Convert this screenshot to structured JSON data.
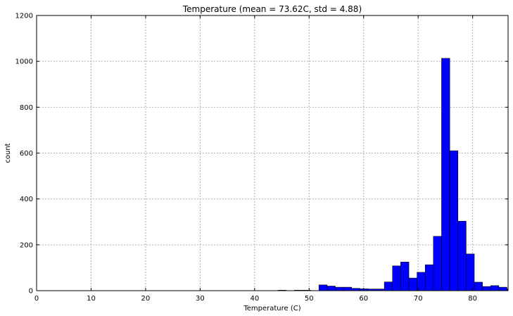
{
  "chart_data": {
    "type": "bar",
    "title": "Temperature (mean = 73.62C, std = 4.88)",
    "xlabel": "Temperature (C)",
    "ylabel": "count",
    "xlim": [
      0,
      86.5
    ],
    "ylim": [
      0,
      1200
    ],
    "xticks": [
      0,
      10,
      20,
      30,
      40,
      50,
      60,
      70,
      80
    ],
    "yticks": [
      0,
      200,
      400,
      600,
      800,
      1000,
      1200
    ],
    "grid": true,
    "bin_width": 1.5,
    "bars": [
      {
        "x": 44.3,
        "value": 2
      },
      {
        "x": 47.3,
        "value": 2
      },
      {
        "x": 48.8,
        "value": 2
      },
      {
        "x": 51.8,
        "value": 25
      },
      {
        "x": 53.3,
        "value": 20
      },
      {
        "x": 54.8,
        "value": 15
      },
      {
        "x": 56.3,
        "value": 15
      },
      {
        "x": 57.8,
        "value": 10
      },
      {
        "x": 59.3,
        "value": 8
      },
      {
        "x": 60.8,
        "value": 7
      },
      {
        "x": 62.3,
        "value": 7
      },
      {
        "x": 63.8,
        "value": 38
      },
      {
        "x": 65.3,
        "value": 108
      },
      {
        "x": 66.8,
        "value": 125
      },
      {
        "x": 68.3,
        "value": 55
      },
      {
        "x": 69.8,
        "value": 80
      },
      {
        "x": 71.3,
        "value": 113
      },
      {
        "x": 72.8,
        "value": 237
      },
      {
        "x": 74.3,
        "value": 1013
      },
      {
        "x": 75.8,
        "value": 610
      },
      {
        "x": 77.3,
        "value": 303
      },
      {
        "x": 78.8,
        "value": 160
      },
      {
        "x": 80.3,
        "value": 37
      },
      {
        "x": 81.8,
        "value": 18
      },
      {
        "x": 83.3,
        "value": 22
      },
      {
        "x": 84.8,
        "value": 15
      },
      {
        "x": 86.3,
        "value": 7
      }
    ],
    "colors": {
      "bar_fill": "#0000ff",
      "bar_edge": "#000000",
      "grid": "#b0b0b0"
    }
  }
}
